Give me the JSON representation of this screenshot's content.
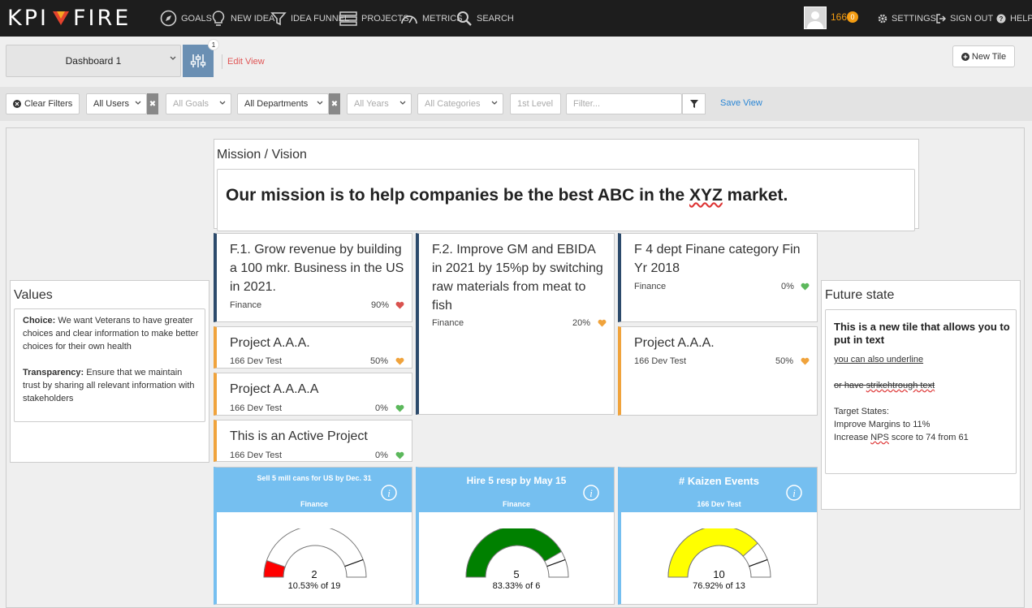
{
  "nav": {
    "logo_left": "KPI",
    "logo_right": "FIRE",
    "items": [
      "GOALS",
      "NEW IDEA",
      "IDEA FUNNEL",
      "PROJECTS",
      "METRICS",
      "SEARCH"
    ],
    "notif_count": "166",
    "notif_badge": "0",
    "settings": "SETTINGS",
    "sign_out": "SIGN OUT",
    "help": "HELP"
  },
  "toolbar": {
    "dashboard": "Dashboard 1",
    "settings_badge": "1",
    "edit_view": "Edit View",
    "new_tile": "New Tile"
  },
  "filters": {
    "clear": "Clear Filters",
    "users": "All Users",
    "goals": "All Goals",
    "departments": "All Departments",
    "years": "All Years",
    "categories": "All Categories",
    "level": "1st Level",
    "filter_placeholder": "Filter...",
    "save_view": "Save View"
  },
  "mission": {
    "title": "Mission / Vision",
    "text_before": "Our mission is to help companies be the best ABC in the ",
    "text_mark": "XYZ",
    "text_after": " market."
  },
  "values": {
    "title": "Values",
    "choice_label": "Choice:",
    "choice_text": " We want Veterans to have greater choices and clear information to make better choices for their own health",
    "transparency_label": "Transparency:",
    "transparency_text": " Ensure that we maintain trust by sharing all relevant information with stakeholders"
  },
  "future": {
    "title": "Future state",
    "heading": "This is a new tile that allows you to put in text",
    "underline": "you can also underline",
    "strike_prefix": "or have ",
    "strike_text": "strikehtrough text",
    "targets_label": "Target States:",
    "target1": "Improve Margins to 11%",
    "target2_pre": "Increase ",
    "target2_mark": "NPS",
    "target2_post": " score to 74 from 61"
  },
  "cards": [
    {
      "title": "F.1. Grow revenue by building a 100 mkr. Business in the US in 2021.",
      "sub": "Finance",
      "pct": "90%",
      "status": "red"
    },
    {
      "title": "F.2. Improve GM and EBIDA in 2021 by 15%p by switching raw materials from meat to fish",
      "sub": "Finance",
      "pct": "20%",
      "status": "orange"
    },
    {
      "title": "F 4 dept Finane category Fin Yr 2018",
      "sub": "Finance",
      "pct": "0%",
      "status": "green"
    },
    {
      "title": "Project A.A.A.",
      "sub": "166 Dev Test",
      "pct": "50%",
      "status": "orange"
    },
    {
      "title": "Project A.A.A.A",
      "sub": "166 Dev Test",
      "pct": "0%",
      "status": "green"
    },
    {
      "title": "This is an Active Project",
      "sub": "166 Dev Test",
      "pct": "0%",
      "status": "green"
    },
    {
      "title": "Project A.A.A.",
      "sub": "166 Dev Test",
      "pct": "50%",
      "status": "orange"
    }
  ],
  "gauges": [
    {
      "title": "Sell 5 mill cans for US by Dec. 31",
      "dept": "Finance",
      "value": "2",
      "sub": "10.53% of 19",
      "fraction": 0.1053,
      "color": "#ff0000"
    },
    {
      "title": "Hire 5 resp by May 15",
      "dept": "Finance",
      "value": "5",
      "sub": "83.33% of 6",
      "fraction": 0.8333,
      "color": "#008000"
    },
    {
      "title": "# Kaizen Events",
      "dept": "166 Dev Test",
      "value": "10",
      "sub": "76.92% of 13",
      "fraction": 0.7692,
      "color": "#ffff00"
    }
  ],
  "colors": {
    "heart_red": "#d9534f",
    "heart_orange": "#f0a33c",
    "heart_green": "#5cb85c"
  }
}
